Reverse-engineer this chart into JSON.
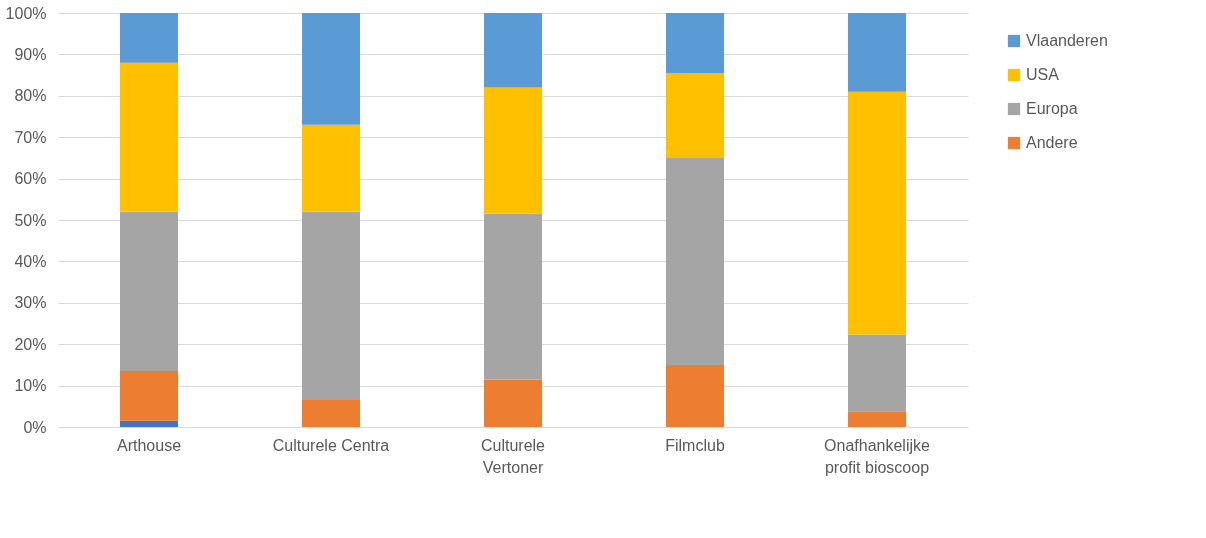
{
  "chart_data": {
    "type": "bar",
    "stacked": true,
    "categories": [
      "Arthouse",
      "Culturele Centra",
      "Culturele Vertoner",
      "Filmclub",
      "Onafhankelijke profit bioscoop"
    ],
    "series": [
      {
        "color": "#4472c4",
        "values": [
          1.5,
          0,
          0,
          0,
          0
        ]
      },
      {
        "name": "Andere",
        "color": "#ed7d31",
        "values": [
          12,
          6.5,
          11.5,
          15,
          3.8
        ]
      },
      {
        "name": "Europa",
        "color": "#a5a5a5",
        "values": [
          38.5,
          45.5,
          40,
          50,
          18.5
        ]
      },
      {
        "name": "USA",
        "color": "#ffc000",
        "values": [
          36,
          21,
          30.5,
          20.5,
          58.7
        ]
      },
      {
        "name": "Vlaanderen",
        "color": "#5b9bd5",
        "values": [
          12,
          27,
          18,
          14.5,
          19
        ]
      }
    ],
    "ylim": [
      0,
      100
    ],
    "yticks": [
      {
        "value": 0,
        "label": "0%"
      },
      {
        "value": 10,
        "label": "10%"
      },
      {
        "value": 20,
        "label": "20%"
      },
      {
        "value": 30,
        "label": "30%"
      },
      {
        "value": 40,
        "label": "40%"
      },
      {
        "value": 50,
        "label": "50%"
      },
      {
        "value": 60,
        "label": "60%"
      },
      {
        "value": 70,
        "label": "70%"
      },
      {
        "value": 80,
        "label": "80%"
      },
      {
        "value": 90,
        "label": "90%"
      },
      {
        "value": 100,
        "label": "100%"
      }
    ],
    "grid": "y",
    "legend": "right"
  }
}
